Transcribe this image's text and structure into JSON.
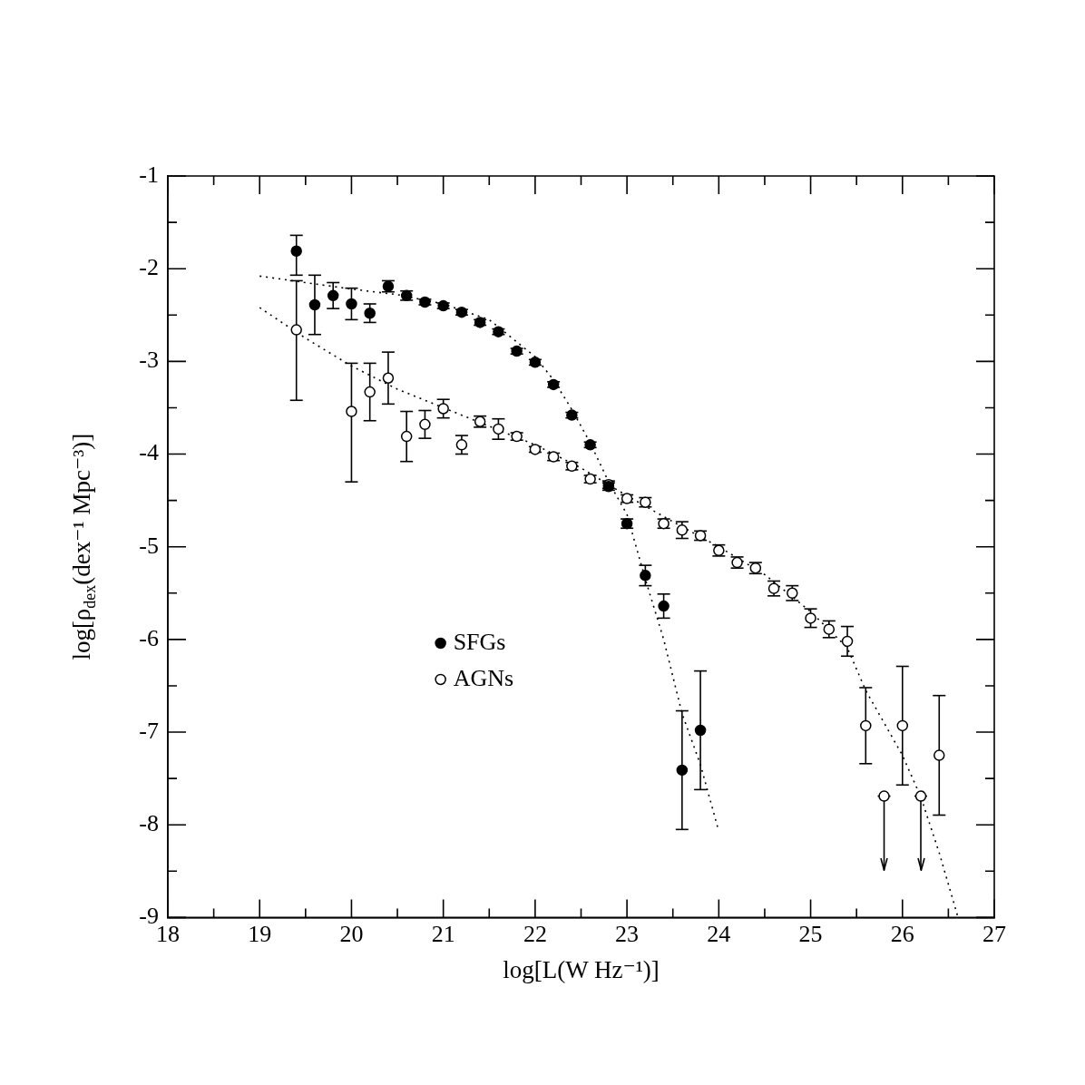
{
  "chart_data": {
    "type": "scatter",
    "xlabel": "log[L(W Hz⁻¹)]",
    "ylabel": "log[ρ$_{dex}$(dex⁻¹ Mpc⁻³)]",
    "xlim": [
      18,
      27
    ],
    "ylim": [
      -9,
      -1
    ],
    "xticks": [
      18,
      {
        "value": 18.5,
        "label": null
      },
      19,
      {
        "value": 19.5,
        "label": null
      },
      20,
      {
        "value": 20.5,
        "label": null
      },
      21,
      {
        "value": 21.5,
        "label": null
      },
      22,
      {
        "value": 22.5,
        "label": null
      },
      23,
      {
        "value": 23.5,
        "label": null
      },
      24,
      {
        "value": 24.5,
        "label": null
      },
      25,
      {
        "value": 25.5,
        "label": null
      },
      26,
      {
        "value": 26.5,
        "label": null
      },
      27
    ],
    "yticks": [
      -9,
      {
        "value": -8.5,
        "label": null
      },
      -8,
      {
        "value": -7.5,
        "label": null
      },
      -7,
      {
        "value": -6.5,
        "label": null
      },
      -6,
      {
        "value": -5.5,
        "label": null
      },
      -5,
      {
        "value": -4.5,
        "label": null
      },
      -4,
      {
        "value": -3.5,
        "label": null
      },
      -3,
      {
        "value": -2.5,
        "label": null
      },
      -2,
      {
        "value": -1.5,
        "label": null
      },
      -1
    ],
    "grid": false,
    "legend": "left",
    "series": [
      {
        "name": "SFGs",
        "color": "#000000",
        "marker": "circle",
        "x": [
          19.4,
          19.6,
          19.8,
          20.0,
          20.2,
          20.4,
          20.6,
          20.8,
          21.0,
          21.2,
          21.4,
          21.6,
          21.8,
          22.0,
          22.2,
          22.4,
          22.6,
          22.8,
          23.0,
          23.2,
          23.4,
          23.6,
          23.8
        ],
        "values": [
          -1.81,
          -2.39,
          -2.29,
          -2.38,
          -2.48,
          -2.19,
          -2.29,
          -2.36,
          -2.4,
          -2.47,
          -2.58,
          -2.68,
          -2.89,
          -3.01,
          -3.25,
          -3.58,
          -3.9,
          -4.35,
          -4.75,
          -5.31,
          -5.64,
          -7.41,
          -6.98
        ],
        "errors": [
          [
            -2.07,
            -1.64
          ],
          0.32,
          0.14,
          0.17,
          0.1,
          0.06,
          0.05,
          0.03,
          0.03,
          0.03,
          0.03,
          0.03,
          0.03,
          0.03,
          0.03,
          0.03,
          0.03,
          0.04,
          0.05,
          0.11,
          0.13,
          0.64,
          0.64
        ]
      },
      {
        "name": "AGNs",
        "color": "#ffffff",
        "marker": "circle",
        "x": [
          19.4,
          20.0,
          20.2,
          20.4,
          20.6,
          20.8,
          21.0,
          21.2,
          21.4,
          21.6,
          21.8,
          22.0,
          22.2,
          22.4,
          22.6,
          22.8,
          23.0,
          23.2,
          23.4,
          23.6,
          23.8,
          24.0,
          24.2,
          24.4,
          24.6,
          24.8,
          25.0,
          25.2,
          25.4,
          25.6,
          25.8,
          26.0,
          26.2,
          26.4
        ],
        "values": [
          -2.66,
          -3.54,
          -3.33,
          -3.18,
          -3.81,
          -3.68,
          -3.51,
          -3.9,
          -3.65,
          -3.73,
          -3.81,
          -3.95,
          -4.03,
          -4.13,
          -4.27,
          -4.33,
          -4.48,
          -4.52,
          -4.75,
          -4.82,
          -4.88,
          -5.04,
          -5.17,
          -5.23,
          -5.45,
          -5.5,
          -5.77,
          -5.89,
          -6.02,
          -6.93,
          -7.69,
          -6.93,
          -7.69,
          -7.25
        ],
        "errors": [
          [
            -3.42,
            -2.13
          ],
          [
            -4.3,
            -3.02
          ],
          0.31,
          0.28,
          0.27,
          0.15,
          0.1,
          0.1,
          0.06,
          0.11,
          0.04,
          0.03,
          0.04,
          0.04,
          0.04,
          0.04,
          0.04,
          0.05,
          0.05,
          0.09,
          0.05,
          0.06,
          0.06,
          0.06,
          0.08,
          0.08,
          0.1,
          0.09,
          0.16,
          0.41,
          [
            -8.49,
            -7.69
          ],
          0.64,
          [
            -8.49,
            -7.69
          ],
          0.645
        ]
      },
      {
        "type": "line",
        "line_style": "dotted",
        "color": "#000000",
        "x": [
          19.0,
          19.5,
          20.0,
          20.5,
          21.0,
          21.5,
          22.0,
          22.2,
          22.4,
          22.6,
          22.8,
          23.0,
          23.2,
          23.4,
          23.6,
          23.8,
          24.0
        ],
        "values": [
          -2.08,
          -2.15,
          -2.22,
          -2.28,
          -2.38,
          -2.55,
          -2.95,
          -3.2,
          -3.52,
          -3.88,
          -4.3,
          -4.65,
          -5.35,
          -6.0,
          -6.8,
          -7.35,
          -8.07
        ]
      },
      {
        "type": "line",
        "line_style": "dotted",
        "color": "#000000",
        "x": [
          19.0,
          19.5,
          20.0,
          20.5,
          21.0,
          21.5,
          22.0,
          22.5,
          23.0,
          23.5,
          24.0,
          24.5,
          25.0,
          25.4,
          25.6,
          25.8,
          26.0,
          26.2,
          26.4,
          26.6
        ],
        "values": [
          -2.42,
          -2.75,
          -3.05,
          -3.3,
          -3.5,
          -3.7,
          -3.9,
          -4.15,
          -4.45,
          -4.73,
          -5.0,
          -5.3,
          -5.7,
          -6.09,
          -6.55,
          -6.9,
          -7.25,
          -7.7,
          -8.3,
          -8.98
        ]
      }
    ]
  }
}
